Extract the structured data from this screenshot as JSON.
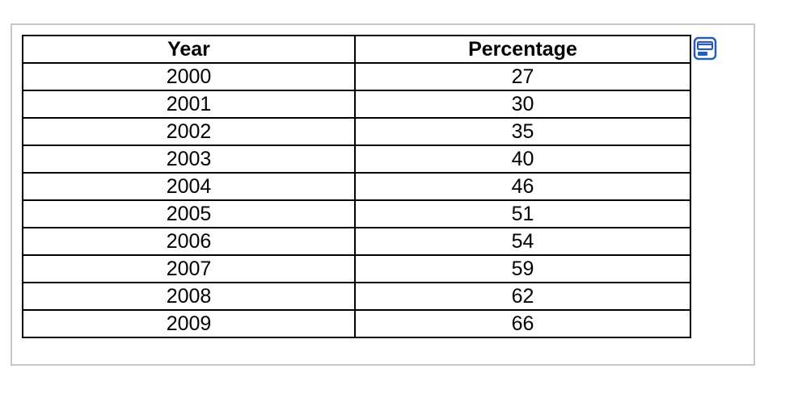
{
  "table": {
    "headers": {
      "year": "Year",
      "percentage": "Percentage"
    },
    "rows": [
      {
        "year": "2000",
        "percentage": "27"
      },
      {
        "year": "2001",
        "percentage": "30"
      },
      {
        "year": "2002",
        "percentage": "35"
      },
      {
        "year": "2003",
        "percentage": "40"
      },
      {
        "year": "2004",
        "percentage": "46"
      },
      {
        "year": "2005",
        "percentage": "51"
      },
      {
        "year": "2006",
        "percentage": "54"
      },
      {
        "year": "2007",
        "percentage": "59"
      },
      {
        "year": "2008",
        "percentage": "62"
      },
      {
        "year": "2009",
        "percentage": "66"
      }
    ]
  },
  "icons": {
    "popout": "popout-window-icon"
  },
  "colors": {
    "icon_blue": "#2a5db0",
    "frame_border": "#c8c8c8",
    "table_border": "#000000"
  }
}
